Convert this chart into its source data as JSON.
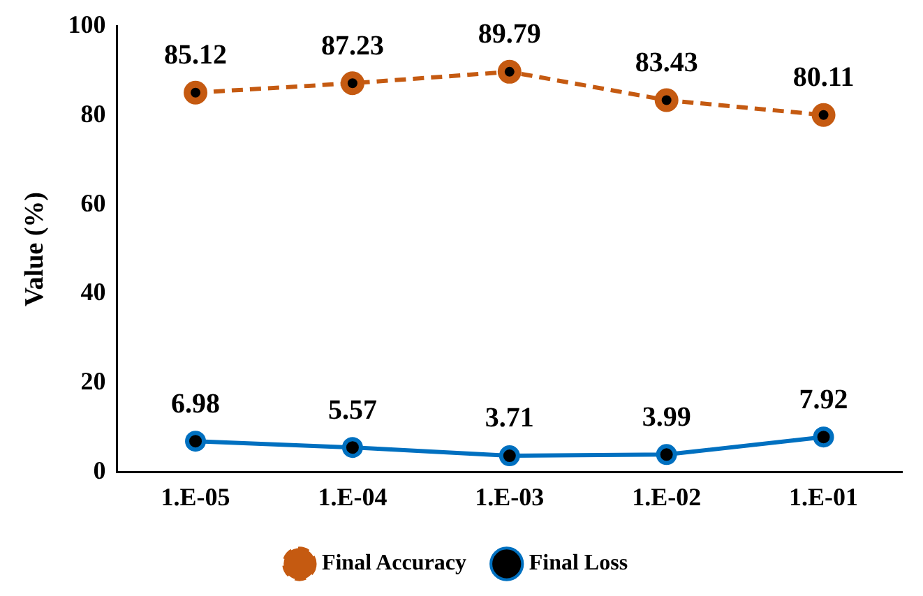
{
  "chart_data": {
    "type": "line",
    "ylabel": "Value (%)",
    "categories": [
      "1.E-05",
      "1.E-04",
      "1.E-03",
      "1.E-02",
      "1.E-01"
    ],
    "series": [
      {
        "name": "Final Accuracy",
        "color": "#c55a11",
        "line_style": "dashed",
        "values": [
          85.12,
          87.23,
          89.79,
          83.43,
          80.11
        ]
      },
      {
        "name": "Final Loss",
        "color": "#0070c0",
        "line_style": "solid",
        "values": [
          6.98,
          5.57,
          3.71,
          3.99,
          7.92
        ]
      }
    ],
    "ylim": [
      0,
      100
    ],
    "yticks": [
      0,
      20,
      40,
      60,
      80,
      100
    ],
    "grid": false,
    "legend": "bottom",
    "marker": "circle",
    "data_labels": true
  }
}
